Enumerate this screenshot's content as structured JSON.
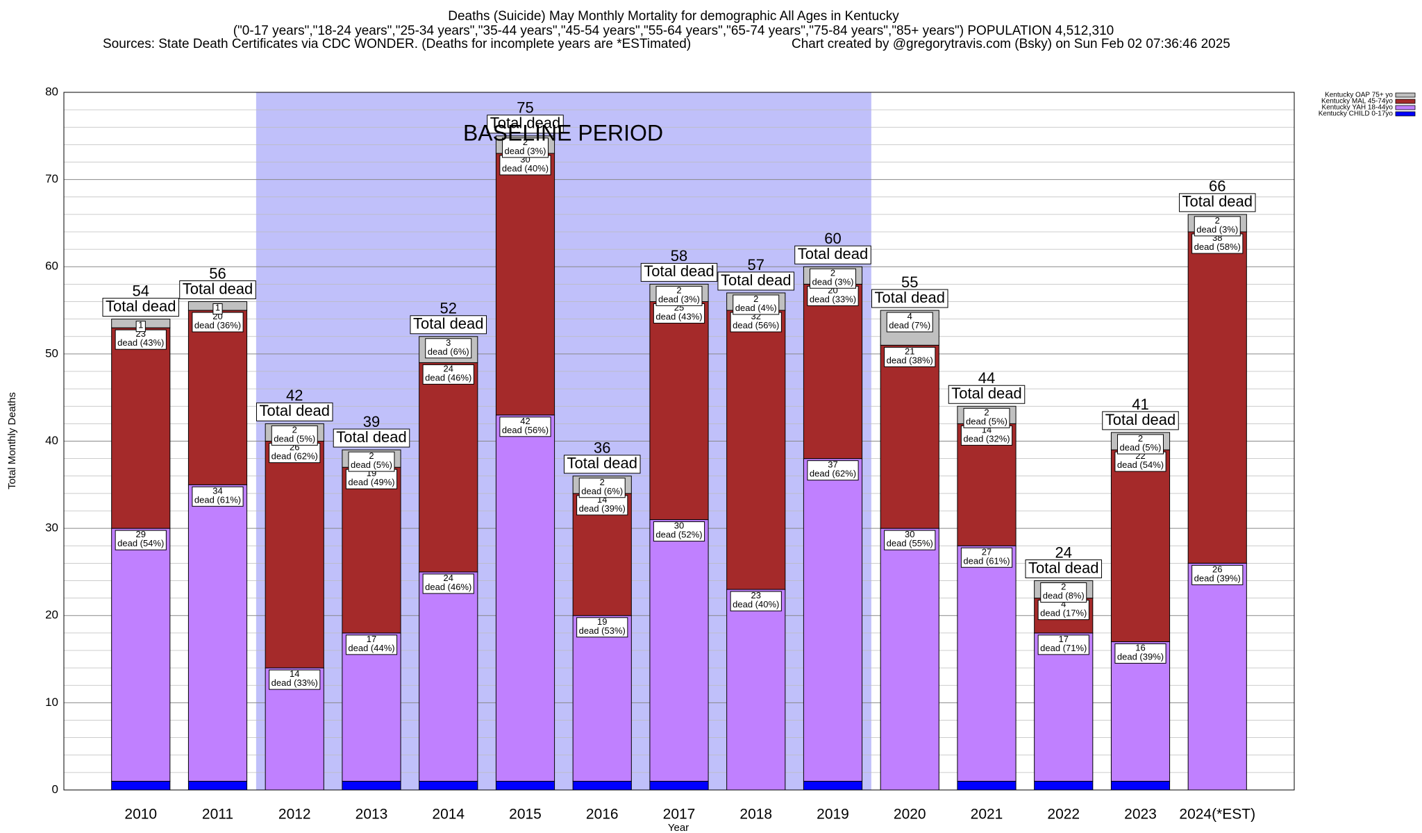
{
  "chart_data": {
    "type": "stacked_bar",
    "title": "Deaths (Suicide) May Monthly Mortality for demographic All Ages in Kentucky",
    "subtitle": "(\"0-17 years\",\"18-24 years\",\"25-34 years\",\"35-44 years\",\"45-54 years\",\"55-64 years\",\"65-74 years\",\"75-84 years\",\"85+ years\") POPULATION 4,512,310",
    "source": "Sources: State Death Certificates via CDC WONDER. (Deaths for incomplete years are *ESTimated)",
    "credit": "Chart created by @gregorytravis.com (Bsky) on Sun Feb 02 07:36:46 2025",
    "x_label": "Year",
    "y_label": "Total Monthly Deaths",
    "categories": [
      "2010",
      "2011",
      "2012",
      "2013",
      "2014",
      "2015",
      "2016",
      "2017",
      "2018",
      "2019",
      "2020",
      "2021",
      "2022",
      "2023",
      "2024(*EST)"
    ],
    "series": [
      {
        "name": "Kentucky CHILD 0-17yo",
        "color": "#0000ff",
        "values": [
          1,
          1,
          0,
          1,
          1,
          1,
          1,
          1,
          0,
          1,
          0,
          1,
          1,
          1,
          0
        ]
      },
      {
        "name": "Kentucky YAH 18-44yo",
        "color": "#c080ff",
        "values": [
          29,
          34,
          14,
          17,
          24,
          42,
          19,
          30,
          23,
          37,
          30,
          27,
          17,
          16,
          26
        ],
        "value_labels": [
          "29\ndead (54%)",
          "34\ndead (61%)",
          "14\ndead (33%)",
          "17\ndead (44%)",
          "24\ndead (46%)",
          "42\ndead (56%)",
          "19\ndead (53%)",
          "30\ndead (52%)",
          "23\ndead (40%)",
          "37\ndead (62%)",
          "30\ndead (55%)",
          "27\ndead (61%)",
          "17\ndead (71%)",
          "16\ndead (39%)",
          "26\ndead (39%)"
        ]
      },
      {
        "name": "Kentucky MAL 45-74yo",
        "color": "#a52a2a",
        "values": [
          23,
          20,
          26,
          19,
          24,
          30,
          14,
          25,
          32,
          20,
          21,
          14,
          4,
          22,
          38
        ],
        "value_labels": [
          "23\ndead (43%)",
          "20\ndead (36%)",
          "26\ndead (62%)",
          "19\ndead (49%)",
          "24\ndead (46%)",
          "30\ndead (40%)",
          "14\ndead (39%)",
          "25\ndead (43%)",
          "32\ndead (56%)",
          "20\ndead (33%)",
          "21\ndead (38%)",
          "14\ndead (32%)",
          "4\ndead (17%)",
          "22\ndead (54%)",
          "38\ndead (58%)"
        ]
      },
      {
        "name": "Kentucky OAP 75+ yo",
        "color": "#c0c0c0",
        "values": [
          1,
          1,
          2,
          2,
          3,
          2,
          2,
          2,
          2,
          2,
          4,
          2,
          2,
          2,
          2
        ],
        "value_labels": [
          "1",
          "1",
          "2\ndead (5%)",
          "2\ndead (5%)",
          "3\ndead (6%)",
          "2\ndead (3%)",
          "2\ndead (6%)",
          "2\ndead (3%)",
          "2\ndead (4%)",
          "2\ndead (3%)",
          "4\ndead (7%)",
          "2\ndead (5%)",
          "2\ndead (8%)",
          "2\ndead (5%)",
          "2\ndead (3%)"
        ]
      }
    ],
    "totals": [
      54,
      56,
      42,
      39,
      52,
      75,
      36,
      58,
      57,
      60,
      55,
      44,
      24,
      41,
      66
    ],
    "total_label": "Total dead",
    "shaded_span": {
      "from": "2012",
      "to": "2019",
      "label": "BASELINE PERIOD",
      "color": "#c0c0fa"
    },
    "ylim": [
      0,
      80
    ],
    "yticks": [
      0,
      10,
      20,
      30,
      40,
      50,
      60,
      70,
      80
    ],
    "minor_yticks": [
      2,
      4,
      6,
      8,
      12,
      14,
      16,
      18,
      22,
      24,
      26,
      28,
      32,
      34,
      36,
      38,
      42,
      44,
      46,
      48,
      52,
      54,
      56,
      58,
      62,
      64,
      66,
      68,
      72,
      74,
      76,
      78
    ],
    "grid": true,
    "legend": "top-right"
  }
}
